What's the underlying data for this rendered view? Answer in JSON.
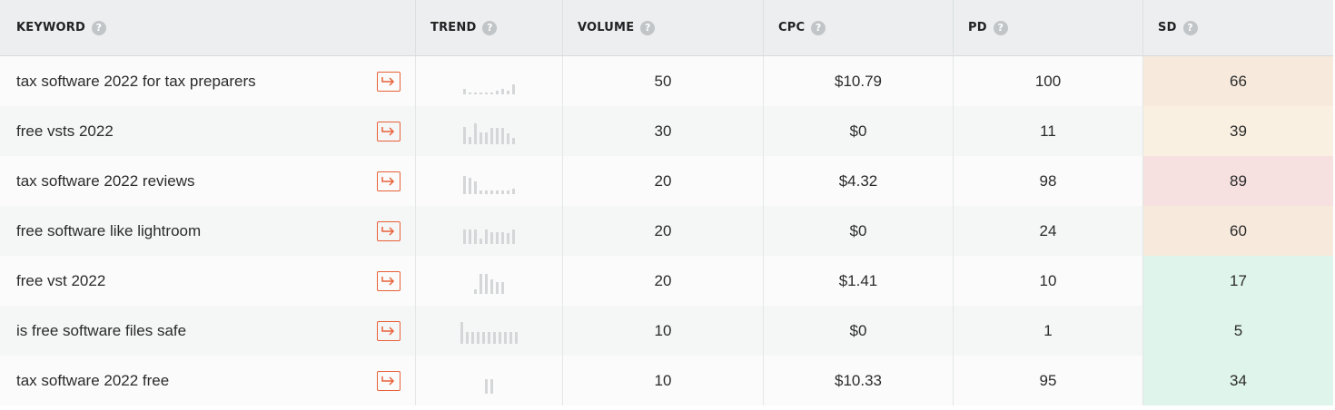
{
  "headers": {
    "keyword": "KEYWORD",
    "trend": "TREND",
    "volume": "VOLUME",
    "cpc": "CPC",
    "pd": "PD",
    "sd": "SD",
    "help_glyph": "?"
  },
  "colors": {
    "accent": "#e8613a",
    "sd_orange": "#f7eadc",
    "sd_light_orange": "#faf0e1",
    "sd_red": "#f6e0e0",
    "sd_green": "#dff4ea"
  },
  "rows": [
    {
      "keyword": "tax software 2022 for tax preparers",
      "trend": [
        0.25,
        0.1,
        0.1,
        0.1,
        0.1,
        0.1,
        0.15,
        0.25,
        0.15,
        0.45
      ],
      "volume": "50",
      "cpc": "$10.79",
      "pd": "100",
      "sd": "66",
      "sd_color": "#f7eadc"
    },
    {
      "keyword": "free vsts 2022",
      "trend": [
        0.8,
        0.35,
        0.95,
        0.55,
        0.55,
        0.75,
        0.75,
        0.75,
        0.5,
        0.3
      ],
      "volume": "30",
      "cpc": "$0",
      "pd": "11",
      "sd": "39",
      "sd_color": "#faf0e1"
    },
    {
      "keyword": "tax software 2022 reviews",
      "trend": [
        0.85,
        0.75,
        0.6,
        0.15,
        0.15,
        0.15,
        0.15,
        0.15,
        0.15,
        0.25
      ],
      "volume": "20",
      "cpc": "$4.32",
      "pd": "98",
      "sd": "89",
      "sd_color": "#f6e0e0"
    },
    {
      "keyword": "free software like lightroom",
      "trend": [
        0.65,
        0.65,
        0.65,
        0.25,
        0.65,
        0.55,
        0.55,
        0.55,
        0.5,
        0.65
      ],
      "volume": "20",
      "cpc": "$0",
      "pd": "24",
      "sd": "60",
      "sd_color": "#f7eadc"
    },
    {
      "keyword": "free vst 2022",
      "trend": [
        0.2,
        0.9,
        0.9,
        0.65,
        0.55,
        0.55
      ],
      "volume": "20",
      "cpc": "$1.41",
      "pd": "10",
      "sd": "17",
      "sd_color": "#dff4ea"
    },
    {
      "keyword": "is free software files safe",
      "trend": [
        1.0,
        0.55,
        0.55,
        0.55,
        0.55,
        0.55,
        0.55,
        0.55,
        0.55,
        0.55,
        0.55
      ],
      "volume": "10",
      "cpc": "$0",
      "pd": "1",
      "sd": "5",
      "sd_color": "#dff4ea"
    },
    {
      "keyword": "tax software 2022 free",
      "trend": [
        0.65,
        0.65
      ],
      "volume": "10",
      "cpc": "$10.33",
      "pd": "95",
      "sd": "34",
      "sd_color": "#dff4ea"
    }
  ]
}
